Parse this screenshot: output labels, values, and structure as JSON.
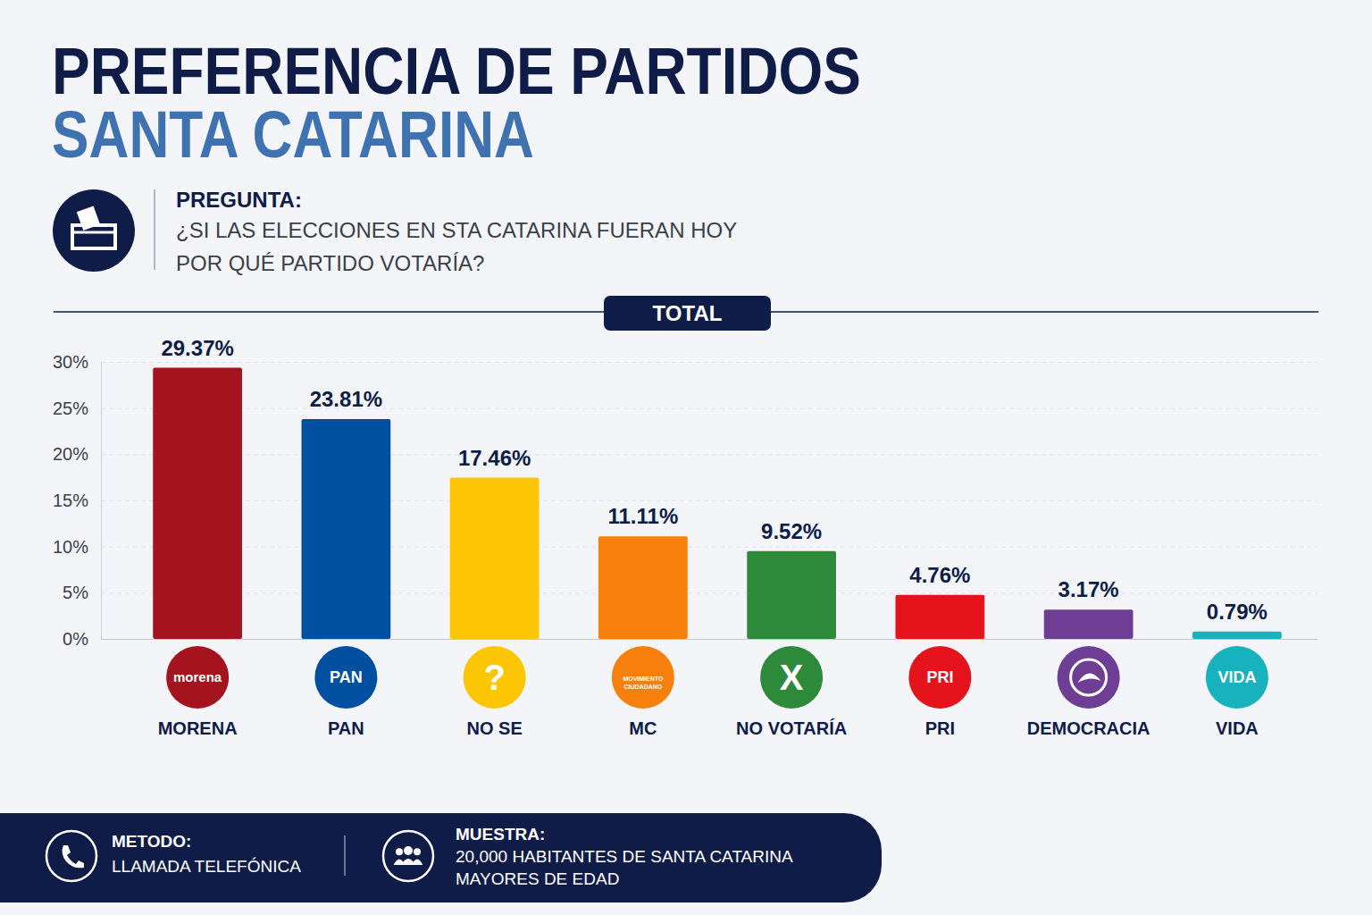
{
  "chart_data": {
    "type": "bar",
    "title": "PREFERENCIA DE PARTIDOS",
    "subtitle": "SANTA CATARINA",
    "categories": [
      "MORENA",
      "PAN",
      "NO SE",
      "MC",
      "NO VOTARÍA",
      "PRI",
      "DEMOCRACIA",
      "VIDA"
    ],
    "values": [
      29.37,
      23.81,
      17.46,
      11.11,
      9.52,
      4.76,
      3.17,
      0.79
    ],
    "value_labels": [
      "29.37%",
      "23.81%",
      "17.46%",
      "11.11%",
      "9.52%",
      "4.76%",
      "3.17%",
      "0.79%"
    ],
    "colors": [
      "#a5141e",
      "#0050a2",
      "#fcc604",
      "#f77f0c",
      "#2d8a3a",
      "#e5141c",
      "#6e3d94",
      "#17b2be"
    ],
    "ylim": [
      0,
      30
    ],
    "yticks": [
      {
        "value": 0,
        "label": "0%"
      },
      {
        "value": 5,
        "label": "5%"
      },
      {
        "value": 10,
        "label": "10%"
      },
      {
        "value": 15,
        "label": "15%"
      },
      {
        "value": 20,
        "label": "20%"
      },
      {
        "value": 25,
        "label": "25%"
      },
      {
        "value": 30,
        "label": "30%"
      }
    ],
    "grid": true,
    "data_labels": true
  },
  "question": {
    "label": "PREGUNTA:",
    "lines": [
      "¿SI LAS ELECCIONES EN STA CATARINA FUERAN HOY",
      "POR QUÉ PARTIDO VOTARÍA?"
    ]
  },
  "panel": "TOTAL",
  "icons": {
    "texts": [
      "morena",
      "PAN",
      "?",
      "MOVIMIENTO CIUDADANO",
      "X",
      "PRI",
      null,
      "VIDA"
    ]
  },
  "footer": {
    "method": {
      "label": "METODO:",
      "text": "LLAMADA TELEFÓNICA"
    },
    "sample": {
      "label": "MUESTRA:",
      "lines": [
        "20,000 HABITANTES DE SANTA CATARINA",
        "MAYORES DE EDAD"
      ]
    }
  }
}
